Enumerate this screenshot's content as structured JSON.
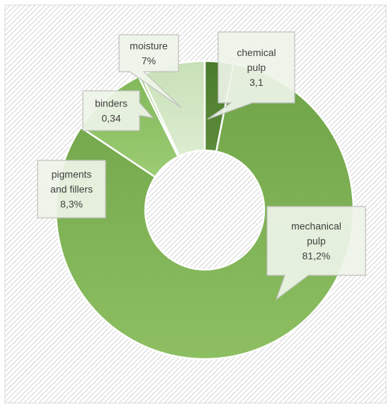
{
  "chart_data": {
    "type": "pie",
    "donut": true,
    "legend": "none",
    "colors": {
      "chart_border": "#d9d9d9",
      "hatch": "#c9c9c9",
      "slice_border": "#ffffff",
      "callout_fill": "#eef4e8",
      "callout_border": "#bfbfbf",
      "label_text": "#404040"
    },
    "slices": [
      {
        "label": "chemical pulp",
        "value": 3.1,
        "value_label": "3,1",
        "color_light": "#5c8c3a",
        "color_dark": "#4a7a2c"
      },
      {
        "label": "mechanical pulp",
        "value": 81.2,
        "value_label": "81,2%",
        "color_light": "#8dbf62",
        "color_dark": "#6fa347"
      },
      {
        "label": "pigments and fillers",
        "value": 8.3,
        "value_label": "8,3%",
        "color_light": "#9ccc74",
        "color_dark": "#82b85a"
      },
      {
        "label": "binders",
        "value": 0.34,
        "value_label": "0,34",
        "color_light": "#b5d99c",
        "color_dark": "#a2cd86"
      },
      {
        "label": "moisture",
        "value": 7,
        "value_label": "7%",
        "color_light": "#dcecd0",
        "color_dark": "#c8e0b6"
      }
    ],
    "callouts": [
      {
        "lines": [
          "chemical",
          "pulp",
          "3,1"
        ]
      },
      {
        "lines": [
          "mechanical",
          "pulp",
          "81,2%"
        ]
      },
      {
        "lines": [
          "pigments",
          "and fillers",
          "8,3%"
        ]
      },
      {
        "lines": [
          "binders",
          "0,34"
        ]
      },
      {
        "lines": [
          "moisture",
          "7%"
        ]
      }
    ]
  }
}
